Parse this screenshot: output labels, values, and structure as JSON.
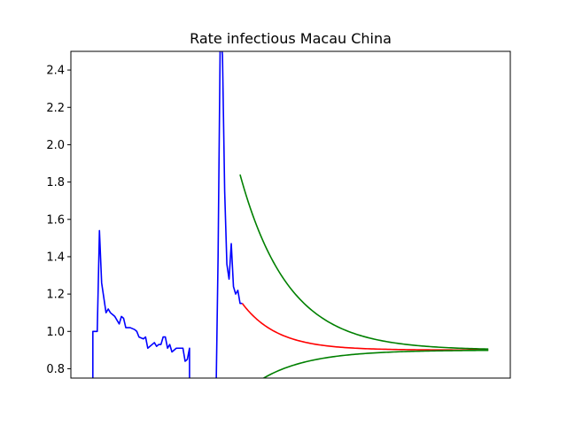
{
  "chart_data": {
    "type": "line",
    "title": "Rate infectious Macau China",
    "xlabel": "",
    "ylabel": "",
    "x_range": [
      0,
      200
    ],
    "ylim": [
      0.75,
      2.5
    ],
    "y_ticks": [
      "0.8",
      "1.0",
      "1.2",
      "1.4",
      "1.6",
      "1.8",
      "2.0",
      "2.2",
      "2.4"
    ],
    "x_ticks": [],
    "grid": false,
    "legend": "none",
    "series": [
      {
        "color": "#0000ff",
        "points": [
          [
            10,
            0.6
          ],
          [
            10,
            1.0
          ],
          [
            11,
            1.0
          ],
          [
            12,
            1.0
          ],
          [
            13,
            1.54
          ],
          [
            14,
            1.26
          ],
          [
            16,
            1.1
          ],
          [
            17,
            1.12
          ],
          [
            18,
            1.1
          ],
          [
            20,
            1.08
          ],
          [
            22,
            1.04
          ],
          [
            23,
            1.08
          ],
          [
            24,
            1.07
          ],
          [
            25,
            1.02
          ],
          [
            27,
            1.02
          ],
          [
            29,
            1.01
          ],
          [
            30,
            1.0
          ],
          [
            31,
            0.97
          ],
          [
            33,
            0.96
          ],
          [
            34,
            0.97
          ],
          [
            35,
            0.91
          ],
          [
            37,
            0.93
          ],
          [
            38,
            0.94
          ],
          [
            39,
            0.92
          ],
          [
            40,
            0.93
          ],
          [
            41,
            0.93
          ],
          [
            42,
            0.97
          ],
          [
            43,
            0.97
          ],
          [
            44,
            0.91
          ],
          [
            45,
            0.93
          ],
          [
            46,
            0.89
          ],
          [
            47,
            0.9
          ],
          [
            48,
            0.91
          ],
          [
            50,
            0.91
          ],
          [
            51,
            0.91
          ],
          [
            52,
            0.84
          ],
          [
            53,
            0.85
          ],
          [
            54,
            0.91
          ],
          [
            54,
            0.6
          ]
        ]
      },
      {
        "color": "#0000ff",
        "points": [
          [
            66,
            0.6
          ],
          [
            67,
            1.4
          ],
          [
            68,
            2.6
          ],
          [
            69,
            2.48
          ],
          [
            70,
            1.75
          ],
          [
            71,
            1.36
          ],
          [
            72,
            1.28
          ],
          [
            73,
            1.47
          ],
          [
            74,
            1.24
          ],
          [
            75,
            1.2
          ],
          [
            76,
            1.22
          ],
          [
            77,
            1.15
          ],
          [
            78,
            1.15
          ]
        ]
      },
      {
        "color": "#ff0000",
        "function": "exp_decay",
        "x_start": 78,
        "x_end": 190,
        "start": 1.15,
        "asymptote": 0.9,
        "tau": 16
      },
      {
        "color": "#008000",
        "function": "exp_decay",
        "x_start": 77,
        "x_end": 190,
        "start": 1.84,
        "asymptote": 0.9,
        "tau": 22
      },
      {
        "color": "#008000",
        "function": "exp_decay",
        "x_start": 85,
        "x_end": 190,
        "start": 0.73,
        "asymptote": 0.9,
        "tau": 22
      }
    ]
  }
}
